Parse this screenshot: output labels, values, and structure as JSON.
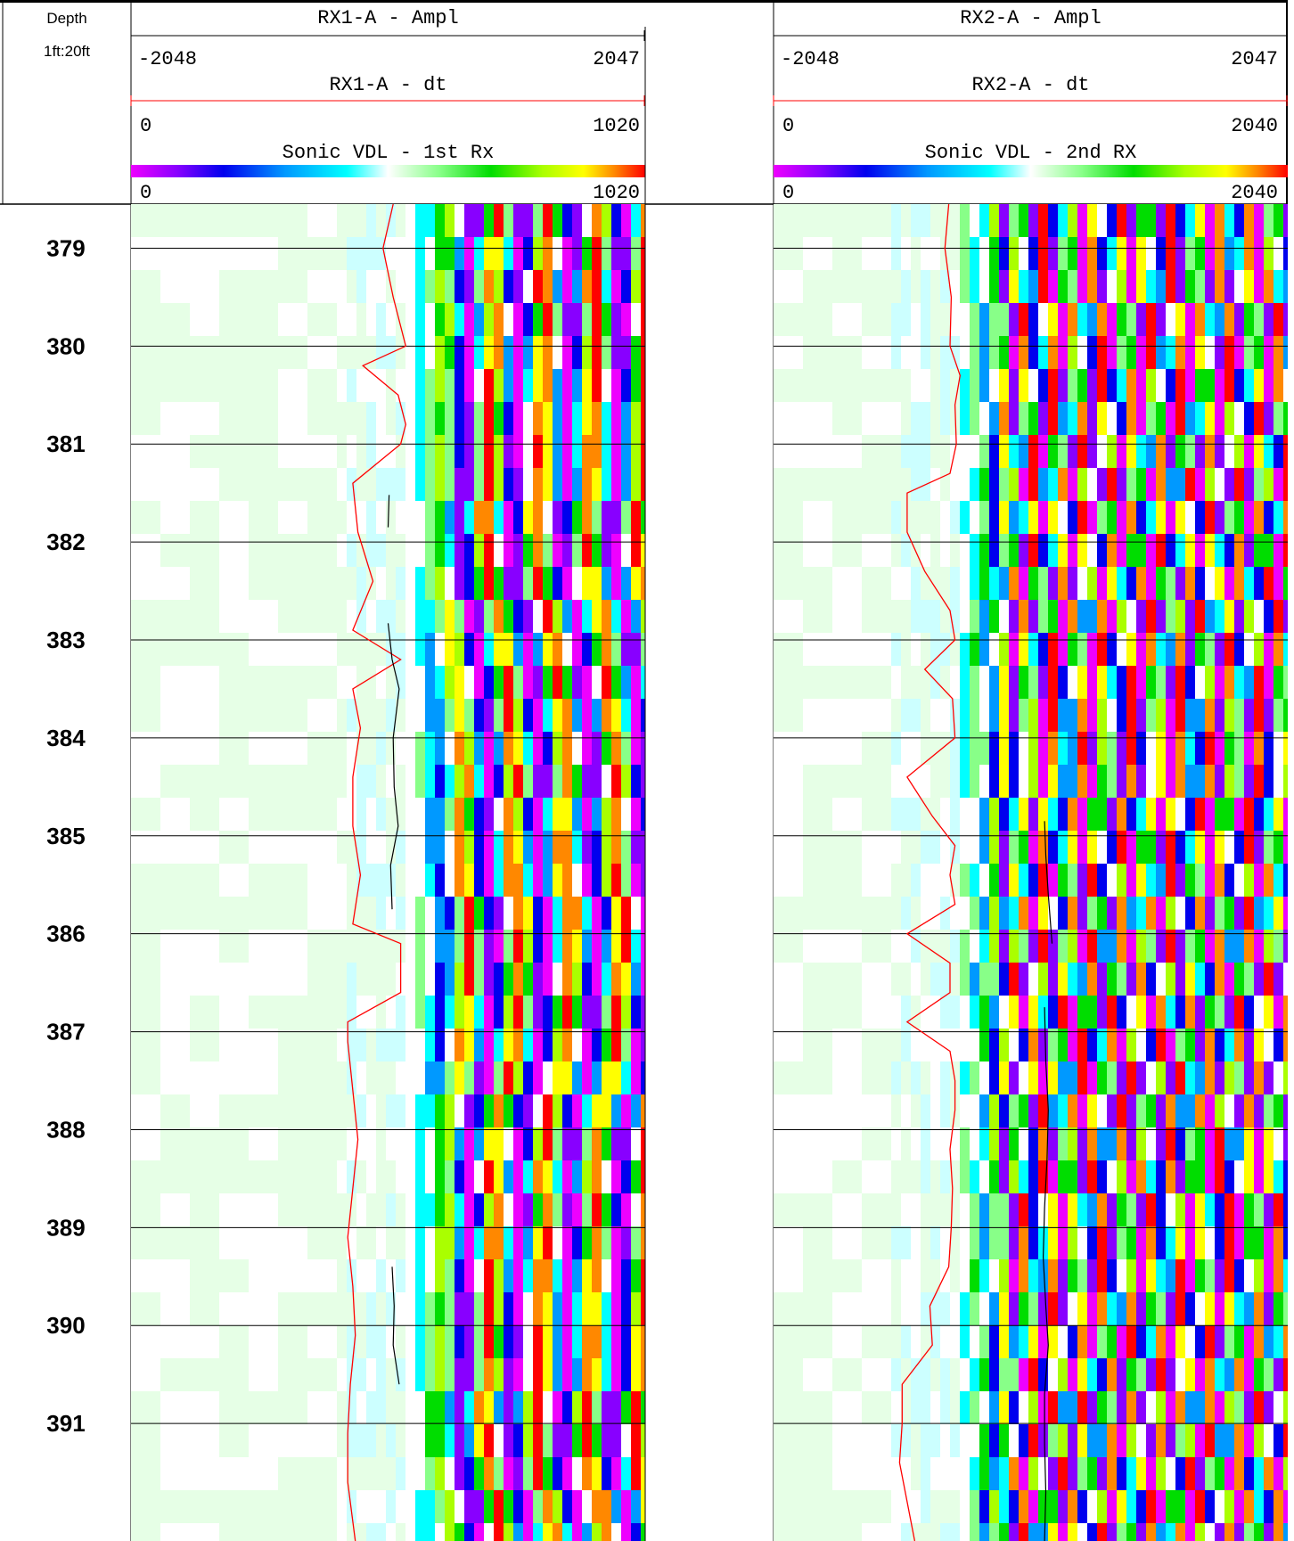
{
  "chart_data": {
    "type": "heatmap",
    "depth_column": {
      "title": "Depth",
      "scale": "1ft:20ft"
    },
    "depth_range": [
      378.55,
      392.2
    ],
    "depth_ticks": [
      379,
      380,
      381,
      382,
      383,
      384,
      385,
      386,
      387,
      388,
      389,
      390,
      391
    ],
    "tracks": [
      {
        "id": "rx1",
        "curves": [
          {
            "name": "RX1-A - Ampl",
            "min": "-2048",
            "max": "2047",
            "color": "#000000"
          },
          {
            "name": "RX1-A - dt",
            "min": "0",
            "max": "1020",
            "color": "#ff0000"
          }
        ],
        "vdl": {
          "name": "Sonic VDL - 1st Rx",
          "min": "0",
          "max": "1020"
        },
        "dt_curve": {
          "depth": [
            378.55,
            379,
            379.5,
            380,
            380.2,
            380.5,
            380.8,
            381,
            381.4,
            381.9,
            382.4,
            382.9,
            383.2,
            383.5,
            383.9,
            384.4,
            384.9,
            385.4,
            385.9,
            386.1,
            386.6,
            386.9,
            387.1,
            387.6,
            388.1,
            388.6,
            389.1,
            389.6,
            390.1,
            390.6,
            391.1,
            391.6,
            392.2
          ],
          "value": [
            520,
            500,
            520,
            545,
            460,
            530,
            545,
            535,
            440,
            450,
            480,
            440,
            535,
            440,
            455,
            440,
            440,
            455,
            440,
            535,
            535,
            430,
            430,
            440,
            450,
            440,
            430,
            440,
            445,
            435,
            430,
            430,
            445
          ]
        },
        "ampl_curve_segments": [
          {
            "depth": [
              381.52,
              381.85
            ],
            "value": [
              512,
              510
            ]
          },
          {
            "depth": [
              382.83,
              383.2,
              383.5,
              384,
              384.5,
              384.9,
              385.3,
              385.75
            ],
            "value": [
              510,
              518,
              532,
              520,
              522,
              530,
              515,
              518
            ]
          },
          {
            "depth": [
              389.4,
              389.8,
              390.2,
              390.6
            ],
            "value": [
              518,
              522,
              520,
              532
            ]
          }
        ]
      },
      {
        "id": "rx2",
        "curves": [
          {
            "name": "RX2-A - Ampl",
            "min": "-2048",
            "max": "2047",
            "color": "#000000"
          },
          {
            "name": "RX2-A - dt",
            "min": "0",
            "max": "2040",
            "color": "#ff0000"
          }
        ],
        "vdl": {
          "name": "Sonic VDL - 2nd RX",
          "min": "0",
          "max": "2040"
        },
        "dt_curve": {
          "depth": [
            378.55,
            379,
            379.5,
            380,
            380.3,
            380.6,
            381,
            381.3,
            381.5,
            381.9,
            382.3,
            382.7,
            383,
            383.3,
            383.6,
            384,
            384.4,
            384.8,
            385.1,
            385.4,
            385.7,
            386,
            386.3,
            386.6,
            386.9,
            387.2,
            387.5,
            387.8,
            388.2,
            388.6,
            389,
            389.4,
            389.8,
            390.2,
            390.6,
            391,
            391.4,
            391.8,
            392.2
          ],
          "value": [
            695,
            680,
            705,
            700,
            740,
            720,
            725,
            700,
            530,
            530,
            600,
            700,
            720,
            600,
            710,
            720,
            530,
            630,
            720,
            700,
            720,
            530,
            700,
            700,
            530,
            700,
            720,
            720,
            700,
            710,
            705,
            695,
            620,
            630,
            510,
            510,
            500,
            530,
            560
          ]
        },
        "ampl_curve_segments": [
          {
            "depth": [
              384.85,
              385.2,
              385.6,
              386.1
            ],
            "value": [
              1075,
              1080,
              1090,
              1105
            ]
          },
          {
            "depth": [
              386.75,
              387.3,
              387.8,
              388.3,
              388.8,
              389.3,
              389.8,
              390.2,
              390.7,
              391.2,
              391.7,
              392.2
            ],
            "value": [
              1075,
              1080,
              1090,
              1085,
              1075,
              1070,
              1080,
              1090,
              1075,
              1075,
              1080,
              1075
            ]
          }
        ]
      }
    ],
    "vdl_palette": [
      "#ee00ff",
      "#8800ff",
      "#0000ee",
      "#0099ff",
      "#00ffff",
      "#ffffff",
      "#88ff88",
      "#00dd00",
      "#aaff00",
      "#ffff00",
      "#ff8800",
      "#ff0000"
    ],
    "background_tint": "#e6ffe6"
  }
}
